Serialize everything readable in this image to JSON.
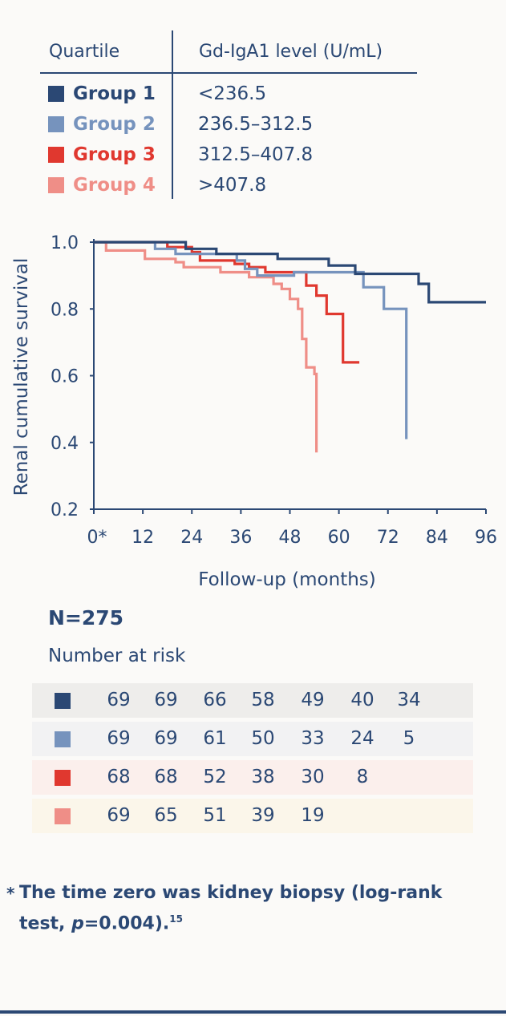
{
  "legend": {
    "header_group": "Quartile",
    "header_level": "Gd-IgA1 level (U/mL)",
    "groups": [
      {
        "name": "Group 1",
        "range": "<236.5",
        "color": "#2b4874"
      },
      {
        "name": "Group 2",
        "range": "236.5–312.5",
        "color": "#7693bd"
      },
      {
        "name": "Group 3",
        "range": "312.5–407.8",
        "color": "#e0382f"
      },
      {
        "name": "Group 4",
        "range": ">407.8",
        "color": "#ef8e87"
      }
    ]
  },
  "chart_data": {
    "type": "line",
    "subtype": "kaplan-meier step",
    "xlabel": "Follow-up (months)",
    "ylabel": "Renal cumulative survival",
    "xlim": [
      0,
      96
    ],
    "ylim": [
      0.2,
      1.0
    ],
    "x_ticks": [
      "0*",
      "12",
      "24",
      "36",
      "48",
      "60",
      "72",
      "84",
      "96"
    ],
    "y_ticks": [
      "0.2",
      "0.4",
      "0.6",
      "0.8",
      "1.0"
    ],
    "series": [
      {
        "name": "Group 1",
        "color": "#2b4874",
        "points": [
          [
            0,
            1.0
          ],
          [
            22.5,
            1.0
          ],
          [
            22.5,
            0.98
          ],
          [
            30,
            0.98
          ],
          [
            30,
            0.965
          ],
          [
            45,
            0.965
          ],
          [
            45,
            0.95
          ],
          [
            57.5,
            0.95
          ],
          [
            57.5,
            0.93
          ],
          [
            64,
            0.93
          ],
          [
            64,
            0.905
          ],
          [
            79.5,
            0.905
          ],
          [
            79.5,
            0.875
          ],
          [
            82,
            0.875
          ],
          [
            82,
            0.82
          ],
          [
            96,
            0.82
          ]
        ]
      },
      {
        "name": "Group 2",
        "color": "#7693bd",
        "points": [
          [
            0,
            1.0
          ],
          [
            15,
            1.0
          ],
          [
            15,
            0.98
          ],
          [
            20,
            0.98
          ],
          [
            20,
            0.965
          ],
          [
            35,
            0.965
          ],
          [
            35,
            0.945
          ],
          [
            37,
            0.945
          ],
          [
            37,
            0.92
          ],
          [
            40,
            0.92
          ],
          [
            40,
            0.9
          ],
          [
            49,
            0.9
          ],
          [
            49,
            0.91
          ],
          [
            66,
            0.91
          ],
          [
            66,
            0.865
          ],
          [
            71,
            0.865
          ],
          [
            71,
            0.8
          ],
          [
            76.5,
            0.8
          ],
          [
            76.5,
            0.41
          ]
        ]
      },
      {
        "name": "Group 3",
        "color": "#e0382f",
        "points": [
          [
            0,
            1.0
          ],
          [
            18,
            1.0
          ],
          [
            18,
            0.985
          ],
          [
            24,
            0.985
          ],
          [
            24,
            0.97
          ],
          [
            26,
            0.97
          ],
          [
            26,
            0.945
          ],
          [
            34.5,
            0.945
          ],
          [
            34.5,
            0.935
          ],
          [
            38,
            0.935
          ],
          [
            38,
            0.925
          ],
          [
            42,
            0.925
          ],
          [
            42,
            0.91
          ],
          [
            52,
            0.91
          ],
          [
            52,
            0.87
          ],
          [
            54.5,
            0.87
          ],
          [
            54.5,
            0.84
          ],
          [
            57,
            0.84
          ],
          [
            57,
            0.785
          ],
          [
            61,
            0.785
          ],
          [
            61,
            0.64
          ],
          [
            65,
            0.64
          ]
        ]
      },
      {
        "name": "Group 4",
        "color": "#ef8e87",
        "points": [
          [
            0,
            1.0
          ],
          [
            3,
            1.0
          ],
          [
            3,
            0.975
          ],
          [
            12.5,
            0.975
          ],
          [
            12.5,
            0.95
          ],
          [
            20,
            0.95
          ],
          [
            20,
            0.94
          ],
          [
            22,
            0.94
          ],
          [
            22,
            0.925
          ],
          [
            31,
            0.925
          ],
          [
            31,
            0.91
          ],
          [
            38,
            0.91
          ],
          [
            38,
            0.895
          ],
          [
            44,
            0.895
          ],
          [
            44,
            0.875
          ],
          [
            46,
            0.875
          ],
          [
            46,
            0.86
          ],
          [
            48,
            0.86
          ],
          [
            48,
            0.83
          ],
          [
            50,
            0.83
          ],
          [
            50,
            0.8
          ],
          [
            51,
            0.8
          ],
          [
            51,
            0.71
          ],
          [
            52,
            0.71
          ],
          [
            52,
            0.625
          ],
          [
            54,
            0.625
          ],
          [
            54,
            0.605
          ],
          [
            54.5,
            0.605
          ],
          [
            54.5,
            0.37
          ]
        ]
      }
    ]
  },
  "n_label": "N=275",
  "risk_title": "Number at risk",
  "risk_rows": [
    {
      "color": "#2b4874",
      "bg": "#eeedeb",
      "values": [
        "69",
        "69",
        "66",
        "58",
        "49",
        "40",
        "34"
      ]
    },
    {
      "color": "#7693bd",
      "bg": "#f2f2f3",
      "values": [
        "69",
        "69",
        "61",
        "50",
        "33",
        "24",
        "5"
      ]
    },
    {
      "color": "#e0382f",
      "bg": "#fbefec",
      "values": [
        "68",
        "68",
        "52",
        "38",
        "30",
        "8"
      ]
    },
    {
      "color": "#ef8e87",
      "bg": "#fbf6ea",
      "values": [
        "69",
        "65",
        "51",
        "39",
        "19"
      ]
    }
  ],
  "footnote": {
    "star": "*",
    "text": "The time zero was kidney biopsy (log-rank test, ",
    "p_italic": "p",
    "p_value": "=0.004).",
    "ref": "15"
  }
}
